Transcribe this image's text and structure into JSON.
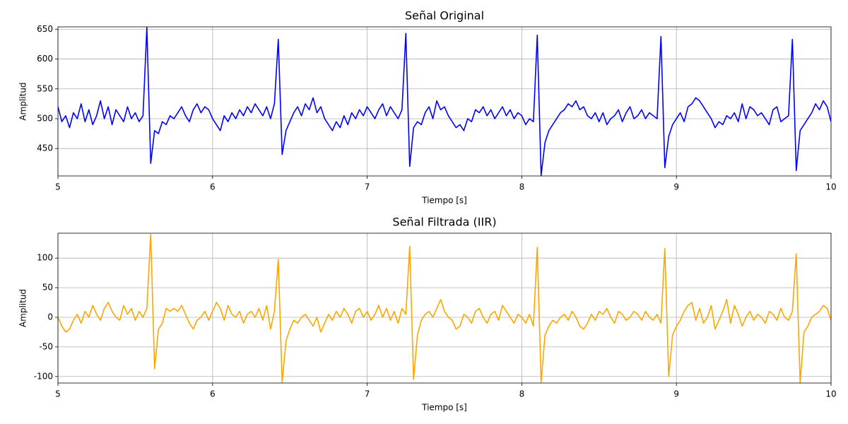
{
  "chart_data": [
    {
      "type": "line",
      "title": "Señal Original",
      "xlabel": "Tiempo [s]",
      "ylabel": "Amplitud",
      "color": "#0000ff",
      "grid": true,
      "xlim": [
        5,
        10
      ],
      "xticks": [
        5,
        6,
        7,
        8,
        9,
        10
      ],
      "ylim": [
        404,
        654
      ],
      "yticks": [
        450,
        500,
        550,
        600,
        650
      ],
      "x": [
        5,
        5.025,
        5.05,
        5.075,
        5.1,
        5.125,
        5.15,
        5.175,
        5.2,
        5.225,
        5.25,
        5.275,
        5.3,
        5.325,
        5.35,
        5.375,
        5.4,
        5.425,
        5.45,
        5.475,
        5.5,
        5.525,
        5.55,
        5.575,
        5.6,
        5.625,
        5.65,
        5.675,
        5.7,
        5.725,
        5.75,
        5.775,
        5.8,
        5.825,
        5.85,
        5.875,
        5.9,
        5.925,
        5.95,
        5.975,
        6,
        6.025,
        6.05,
        6.075,
        6.1,
        6.125,
        6.15,
        6.175,
        6.2,
        6.225,
        6.25,
        6.275,
        6.3,
        6.325,
        6.35,
        6.375,
        6.4,
        6.425,
        6.45,
        6.475,
        6.5,
        6.525,
        6.55,
        6.575,
        6.6,
        6.625,
        6.65,
        6.675,
        6.7,
        6.725,
        6.75,
        6.775,
        6.8,
        6.825,
        6.85,
        6.875,
        6.9,
        6.925,
        6.95,
        6.975,
        7,
        7.025,
        7.05,
        7.075,
        7.1,
        7.125,
        7.15,
        7.175,
        7.2,
        7.225,
        7.25,
        7.275,
        7.3,
        7.325,
        7.35,
        7.375,
        7.4,
        7.425,
        7.45,
        7.475,
        7.5,
        7.525,
        7.55,
        7.575,
        7.6,
        7.625,
        7.65,
        7.675,
        7.7,
        7.725,
        7.75,
        7.775,
        7.8,
        7.825,
        7.85,
        7.875,
        7.9,
        7.925,
        7.95,
        7.975,
        8,
        8.025,
        8.05,
        8.075,
        8.1,
        8.125,
        8.15,
        8.175,
        8.2,
        8.225,
        8.25,
        8.275,
        8.3,
        8.325,
        8.35,
        8.375,
        8.4,
        8.425,
        8.45,
        8.475,
        8.5,
        8.525,
        8.55,
        8.575,
        8.6,
        8.625,
        8.65,
        8.675,
        8.7,
        8.725,
        8.75,
        8.775,
        8.8,
        8.825,
        8.85,
        8.875,
        8.9,
        8.925,
        8.95,
        8.975,
        9,
        9.025,
        9.05,
        9.075,
        9.1,
        9.125,
        9.15,
        9.175,
        9.2,
        9.225,
        9.25,
        9.275,
        9.3,
        9.325,
        9.35,
        9.375,
        9.4,
        9.425,
        9.45,
        9.475,
        9.5,
        9.525,
        9.55,
        9.575,
        9.6,
        9.625,
        9.65,
        9.675,
        9.7,
        9.725,
        9.75,
        9.775,
        9.8,
        9.825,
        9.85,
        9.875,
        9.9,
        9.925,
        9.95,
        9.975,
        10
      ],
      "values": [
        520,
        495,
        505,
        485,
        510,
        500,
        525,
        495,
        515,
        490,
        505,
        530,
        500,
        520,
        490,
        515,
        505,
        495,
        520,
        500,
        510,
        495,
        505,
        653,
        425,
        480,
        475,
        495,
        490,
        505,
        500,
        510,
        520,
        505,
        495,
        515,
        525,
        510,
        520,
        515,
        500,
        490,
        480,
        505,
        495,
        510,
        500,
        515,
        505,
        520,
        510,
        525,
        515,
        505,
        520,
        500,
        525,
        633,
        440,
        480,
        495,
        510,
        520,
        505,
        525,
        515,
        535,
        510,
        520,
        500,
        490,
        480,
        495,
        485,
        505,
        490,
        510,
        500,
        515,
        505,
        520,
        510,
        500,
        515,
        525,
        505,
        520,
        510,
        500,
        515,
        643,
        420,
        485,
        495,
        490,
        510,
        520,
        500,
        530,
        515,
        520,
        505,
        495,
        485,
        490,
        480,
        500,
        495,
        515,
        510,
        520,
        505,
        515,
        500,
        510,
        520,
        505,
        515,
        500,
        510,
        505,
        490,
        500,
        495,
        640,
        405,
        460,
        480,
        490,
        500,
        510,
        515,
        525,
        520,
        530,
        515,
        520,
        505,
        500,
        510,
        495,
        510,
        490,
        500,
        505,
        515,
        495,
        510,
        520,
        500,
        505,
        515,
        500,
        510,
        505,
        500,
        638,
        418,
        470,
        490,
        500,
        510,
        495,
        520,
        525,
        535,
        530,
        520,
        510,
        500,
        485,
        495,
        490,
        505,
        500,
        510,
        495,
        525,
        500,
        520,
        515,
        505,
        510,
        500,
        490,
        515,
        520,
        495,
        500,
        505,
        633,
        413,
        480,
        490,
        500,
        510,
        525,
        515,
        530,
        520,
        495
      ]
    },
    {
      "type": "line",
      "title": "Señal Filtrada (IIR)",
      "xlabel": "Tiempo [s]",
      "ylabel": "Amplitud",
      "color": "#ffa500",
      "grid": true,
      "xlim": [
        5,
        10
      ],
      "xticks": [
        5,
        6,
        7,
        8,
        9,
        10
      ],
      "ylim": [
        -111,
        142
      ],
      "yticks": [
        -100,
        -50,
        0,
        50,
        100
      ],
      "x": [
        5,
        5.025,
        5.05,
        5.075,
        5.1,
        5.125,
        5.15,
        5.175,
        5.2,
        5.225,
        5.25,
        5.275,
        5.3,
        5.325,
        5.35,
        5.375,
        5.4,
        5.425,
        5.45,
        5.475,
        5.5,
        5.525,
        5.55,
        5.575,
        5.6,
        5.625,
        5.65,
        5.675,
        5.7,
        5.725,
        5.75,
        5.775,
        5.8,
        5.825,
        5.85,
        5.875,
        5.9,
        5.925,
        5.95,
        5.975,
        6,
        6.025,
        6.05,
        6.075,
        6.1,
        6.125,
        6.15,
        6.175,
        6.2,
        6.225,
        6.25,
        6.275,
        6.3,
        6.325,
        6.35,
        6.375,
        6.4,
        6.425,
        6.45,
        6.475,
        6.5,
        6.525,
        6.55,
        6.575,
        6.6,
        6.625,
        6.65,
        6.675,
        6.7,
        6.725,
        6.75,
        6.775,
        6.8,
        6.825,
        6.85,
        6.875,
        6.9,
        6.925,
        6.95,
        6.975,
        7,
        7.025,
        7.05,
        7.075,
        7.1,
        7.125,
        7.15,
        7.175,
        7.2,
        7.225,
        7.25,
        7.275,
        7.3,
        7.325,
        7.35,
        7.375,
        7.4,
        7.425,
        7.45,
        7.475,
        7.5,
        7.525,
        7.55,
        7.575,
        7.6,
        7.625,
        7.65,
        7.675,
        7.7,
        7.725,
        7.75,
        7.775,
        7.8,
        7.825,
        7.85,
        7.875,
        7.9,
        7.925,
        7.95,
        7.975,
        8,
        8.025,
        8.05,
        8.075,
        8.1,
        8.125,
        8.15,
        8.175,
        8.2,
        8.225,
        8.25,
        8.275,
        8.3,
        8.325,
        8.35,
        8.375,
        8.4,
        8.425,
        8.45,
        8.475,
        8.5,
        8.525,
        8.55,
        8.575,
        8.6,
        8.625,
        8.65,
        8.675,
        8.7,
        8.725,
        8.75,
        8.775,
        8.8,
        8.825,
        8.85,
        8.875,
        8.9,
        8.925,
        8.95,
        8.975,
        9,
        9.025,
        9.05,
        9.075,
        9.1,
        9.125,
        9.15,
        9.175,
        9.2,
        9.225,
        9.25,
        9.275,
        9.3,
        9.325,
        9.35,
        9.375,
        9.4,
        9.425,
        9.45,
        9.475,
        9.5,
        9.525,
        9.55,
        9.575,
        9.6,
        9.625,
        9.65,
        9.675,
        9.7,
        9.725,
        9.75,
        9.775,
        9.8,
        9.825,
        9.85,
        9.875,
        9.9,
        9.925,
        9.95,
        9.975,
        10
      ],
      "values": [
        0,
        -15,
        -25,
        -20,
        -5,
        5,
        -10,
        10,
        0,
        20,
        5,
        -5,
        15,
        25,
        10,
        0,
        -5,
        20,
        5,
        15,
        -5,
        10,
        0,
        15,
        140,
        -87,
        -20,
        -10,
        15,
        10,
        15,
        10,
        20,
        5,
        -10,
        -20,
        -5,
        0,
        10,
        -5,
        10,
        25,
        15,
        -5,
        20,
        5,
        0,
        10,
        -10,
        5,
        10,
        0,
        15,
        -5,
        20,
        -20,
        10,
        98,
        -110,
        -40,
        -20,
        -5,
        -10,
        0,
        5,
        -5,
        -15,
        0,
        -25,
        -10,
        5,
        -5,
        10,
        0,
        15,
        5,
        -10,
        10,
        15,
        0,
        10,
        -5,
        5,
        20,
        0,
        15,
        -5,
        10,
        -10,
        15,
        5,
        120,
        -105,
        -30,
        -5,
        5,
        10,
        0,
        15,
        30,
        10,
        0,
        -5,
        -20,
        -15,
        5,
        0,
        -10,
        10,
        15,
        0,
        -10,
        5,
        10,
        -5,
        20,
        10,
        0,
        -10,
        5,
        0,
        -10,
        5,
        -15,
        118,
        -110,
        -30,
        -15,
        -5,
        -10,
        0,
        5,
        -5,
        10,
        0,
        -15,
        -20,
        -10,
        5,
        -5,
        10,
        5,
        15,
        0,
        -10,
        10,
        5,
        -5,
        0,
        10,
        5,
        -5,
        10,
        0,
        -5,
        5,
        -10,
        116,
        -100,
        -30,
        -15,
        -5,
        10,
        20,
        25,
        -5,
        15,
        -10,
        0,
        20,
        -20,
        -5,
        10,
        30,
        -10,
        20,
        5,
        -15,
        0,
        10,
        -5,
        5,
        0,
        -10,
        10,
        5,
        -5,
        15,
        0,
        -5,
        10,
        107,
        -110,
        -25,
        -15,
        0,
        5,
        10,
        20,
        15,
        -5
      ]
    }
  ]
}
